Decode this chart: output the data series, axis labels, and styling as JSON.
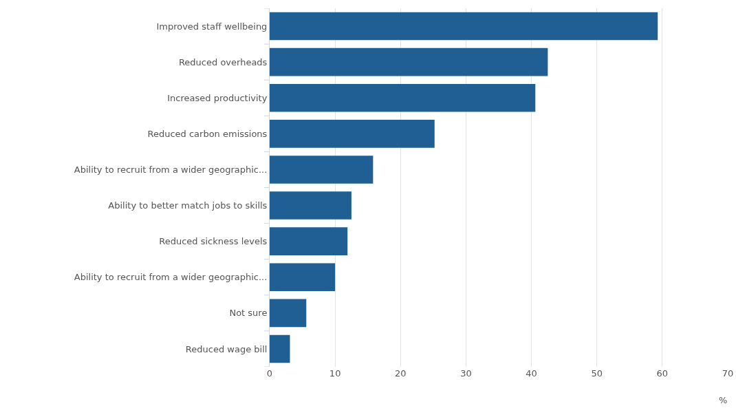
{
  "chart_data": {
    "type": "bar",
    "orientation": "horizontal",
    "xlabel": "%",
    "categories": [
      "Improved staff wellbeing",
      "Reduced overheads",
      "Increased productivity",
      "Reduced carbon emissions",
      "Ability to recruit from a wider geographic...",
      "Ability to better match jobs to skills",
      "Reduced sickness levels",
      "Ability to recruit from a wider geographic...",
      "Not sure",
      "Reduced wage bill"
    ],
    "values": [
      59.3,
      42.5,
      40.6,
      25.2,
      15.8,
      12.5,
      11.9,
      10.0,
      5.6,
      3.1
    ],
    "color": "#1f5f93",
    "xlim": [
      0,
      70
    ],
    "xticks": [
      0,
      10,
      20,
      30,
      40,
      50,
      60,
      70
    ],
    "grid": "x"
  }
}
